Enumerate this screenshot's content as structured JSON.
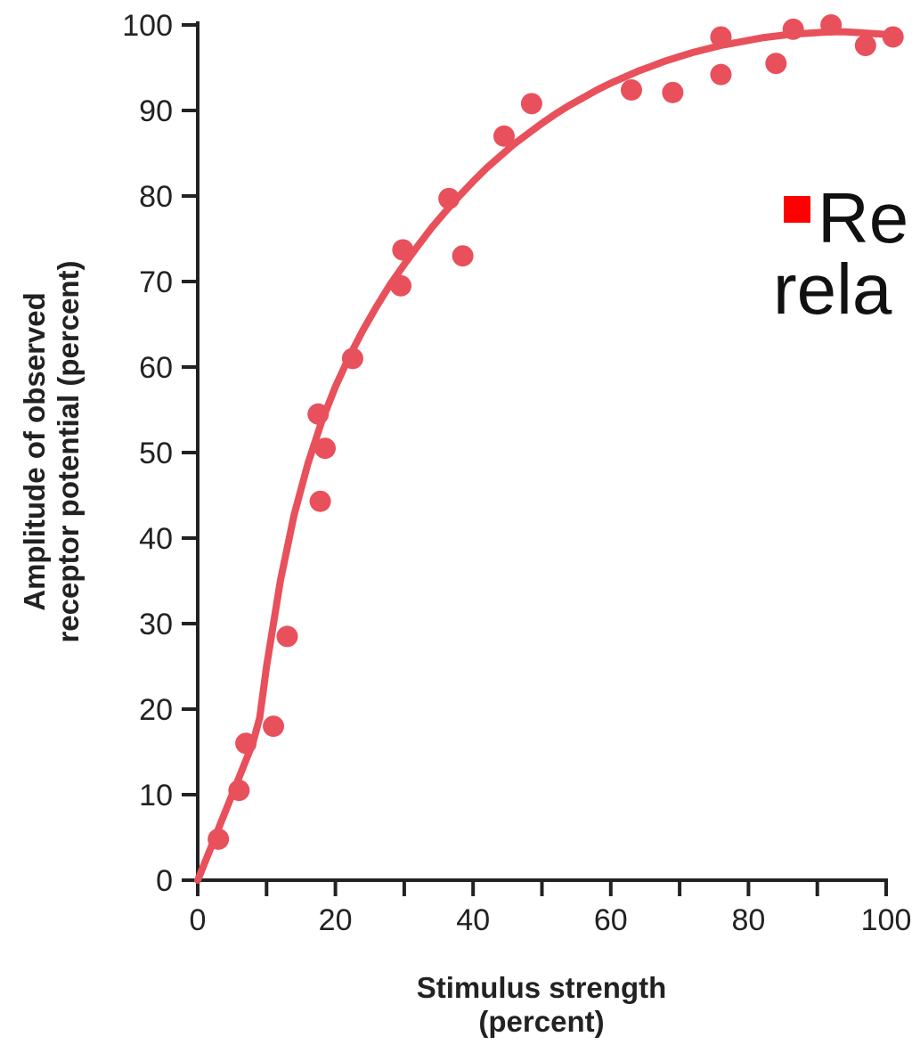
{
  "slide": {
    "text_line1": "Re",
    "text_line2": "rela",
    "bullet_color": "#ff0000"
  },
  "chart_data": {
    "type": "scatter",
    "title": "",
    "xlabel_line1": "Stimulus strength",
    "xlabel_line2": "(percent)",
    "ylabel_line1": "Amplitude of observed",
    "ylabel_line2": "receptor potential (percent)",
    "xlim": [
      0,
      100
    ],
    "ylim": [
      0,
      100
    ],
    "xticks": [
      0,
      20,
      40,
      60,
      80,
      100
    ],
    "xticks_labeled": [
      "0",
      "20",
      "40",
      "60",
      "80",
      "100"
    ],
    "xticks_minor": [
      10,
      30,
      50,
      70,
      90
    ],
    "yticks": [
      0,
      10,
      20,
      30,
      40,
      50,
      60,
      70,
      80,
      90,
      100
    ],
    "yticks_labeled": [
      "0",
      "10",
      "20",
      "30",
      "40",
      "50",
      "60",
      "70",
      "80",
      "90",
      "100"
    ],
    "grid": false,
    "color": "#e8505b",
    "points": [
      {
        "x": 3,
        "y": 4.8
      },
      {
        "x": 6,
        "y": 10.5
      },
      {
        "x": 7,
        "y": 16
      },
      {
        "x": 11,
        "y": 18
      },
      {
        "x": 13,
        "y": 28.5
      },
      {
        "x": 17.5,
        "y": 54.5
      },
      {
        "x": 17.8,
        "y": 44.3
      },
      {
        "x": 18.5,
        "y": 50.5
      },
      {
        "x": 22.5,
        "y": 61
      },
      {
        "x": 29.5,
        "y": 69.5
      },
      {
        "x": 29.8,
        "y": 73.7
      },
      {
        "x": 36.5,
        "y": 79.7
      },
      {
        "x": 38.5,
        "y": 73
      },
      {
        "x": 44.5,
        "y": 87
      },
      {
        "x": 48.5,
        "y": 90.8
      },
      {
        "x": 63,
        "y": 92.4
      },
      {
        "x": 69,
        "y": 92.1
      },
      {
        "x": 76,
        "y": 94.2
      },
      {
        "x": 76,
        "y": 98.6
      },
      {
        "x": 84,
        "y": 95.5
      },
      {
        "x": 86.5,
        "y": 99.5
      },
      {
        "x": 92,
        "y": 100
      },
      {
        "x": 97,
        "y": 97.6
      },
      {
        "x": 101,
        "y": 98.6
      }
    ],
    "fit_curve": {
      "x": [
        0,
        2,
        4,
        6,
        8,
        9,
        10,
        12,
        14,
        16,
        18,
        20,
        22,
        24,
        26,
        28,
        30,
        32,
        34,
        36,
        38,
        40,
        42,
        44,
        46,
        48,
        50,
        52,
        54,
        56,
        58,
        60,
        62,
        64,
        66,
        68,
        70,
        72,
        74,
        76,
        78,
        80,
        82,
        84,
        86,
        88,
        90,
        92,
        94,
        96,
        98,
        100
      ],
      "y": [
        0,
        4,
        8,
        12,
        16,
        19,
        25,
        35,
        42.7,
        48.7,
        53.6,
        57.7,
        61.2,
        64.3,
        67.1,
        69.7,
        72.0,
        74.2,
        76.3,
        78.2,
        80.0,
        81.7,
        83.3,
        84.7,
        86.1,
        87.3,
        88.5,
        89.6,
        90.6,
        91.5,
        92.4,
        93.2,
        93.9,
        94.6,
        95.2,
        95.8,
        96.3,
        96.8,
        97.2,
        97.6,
        97.9,
        98.2,
        98.5,
        98.7,
        98.9,
        99.0,
        99.1,
        99.2,
        99.2,
        99.1,
        99.0,
        98.9
      ]
    }
  }
}
